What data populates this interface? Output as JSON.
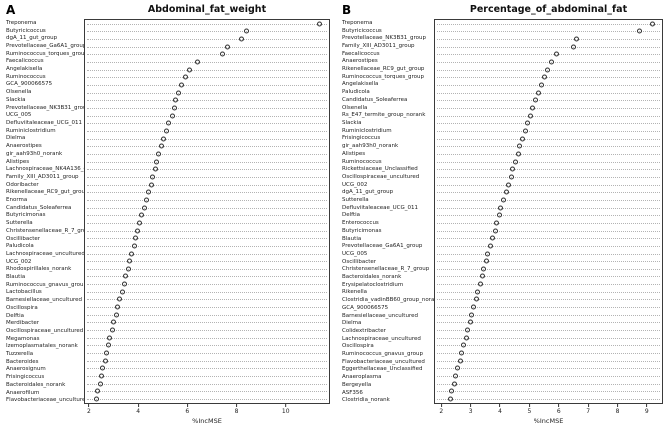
{
  "figure": {
    "panels": [
      {
        "letter": "A"
      },
      {
        "letter": "B"
      }
    ]
  },
  "chart_data": [
    {
      "type": "scatter",
      "subtype": "dotchart",
      "title": "Abdominal_fat_weight",
      "xlabel": "%IncMSE",
      "xlim": [
        1.8,
        11.8
      ],
      "xticks": [
        2,
        4,
        6,
        8,
        10
      ],
      "grid": "horizontal dotted per category",
      "legend": "none",
      "categories": [
        "Treponema",
        "Butyricicoccus",
        "dgA_11_gut_group",
        "Prevotellaceae_Ga6A1_group",
        "Ruminococcus_torques_group",
        "Faecalicoccus",
        "Angelakisella",
        "Ruminococcus",
        "GCA_900066575",
        "Olsenella",
        "Slackia",
        "Prevotellaceae_NK3B31_group",
        "UCG_005",
        "Defluviitaleaceae_UCG_011",
        "Ruminiclostridium",
        "Dielma",
        "Anaerostipes",
        "gir_aah93h0_norank",
        "Alistipes",
        "Lachnospiraceae_NK4A136_group",
        "Family_XIII_AD3011_group",
        "Odoribacter",
        "Rikenellaceae_RC9_gut_group",
        "Enorma",
        "Candidatus_Soleaferrea",
        "Butyricimonas",
        "Sutterella",
        "Christensenellaceae_R_7_group",
        "Oscillibacter",
        "Paludicola",
        "Lachnospiraceae_uncultured",
        "UCG_002",
        "Rhodospirillales_norank",
        "Blautia",
        "Ruminococcus_gnavus_group",
        "Lactobacillus",
        "Barnesiellaceae_uncultured",
        "Oscillospira",
        "Delftia",
        "Merdibacter",
        "Oscillospiraceae_uncultured",
        "Megamonas",
        "Izemoplasmatales_norank",
        "Tuzzerella",
        "Bacteroides",
        "Anaerosignum",
        "Frisingicoccus",
        "Bacteroidales_norank",
        "Anaerofilum",
        "Flavobacteriaceae_uncultured"
      ],
      "values": [
        11.4,
        8.4,
        8.2,
        7.6,
        7.4,
        6.4,
        6.05,
        5.9,
        5.75,
        5.6,
        5.5,
        5.45,
        5.35,
        5.2,
        5.1,
        5.0,
        4.9,
        4.8,
        4.7,
        4.65,
        4.55,
        4.5,
        4.4,
        4.3,
        4.2,
        4.1,
        4.0,
        3.95,
        3.85,
        3.8,
        3.7,
        3.6,
        3.55,
        3.45,
        3.4,
        3.3,
        3.2,
        3.1,
        3.05,
        2.95,
        2.9,
        2.8,
        2.75,
        2.65,
        2.6,
        2.5,
        2.45,
        2.4,
        2.3,
        2.25
      ]
    },
    {
      "type": "scatter",
      "subtype": "dotchart",
      "title": "Percentage_of_abdominal_fat",
      "xlabel": "%IncMSE",
      "xlim": [
        1.75,
        9.55
      ],
      "xticks": [
        2,
        3,
        4,
        5,
        6,
        7,
        8,
        9
      ],
      "grid": "horizontal dotted per category",
      "legend": "none",
      "categories": [
        "Treponema",
        "Butyricicoccus",
        "Prevotellaceae_NK3B31_group",
        "Family_XIII_AD3011_group",
        "Faecalicoccus",
        "Anaerostipes",
        "Rikenellaceae_RC9_gut_group",
        "Ruminococcus_torques_group",
        "Angelakisella",
        "Paludicola",
        "Candidatus_Soleaferrea",
        "Olsenella",
        "Rs_E47_termite_group_norank",
        "Slackia",
        "Ruminiclostridium",
        "Frisingicoccus",
        "gir_aah93h0_norank",
        "Alistipes",
        "Ruminococcus",
        "Rickettsiaceae_Unclassified",
        "Oscillospiraceae_uncultured",
        "UCG_002",
        "dgA_11_gut_group",
        "Sutterella",
        "Defluviitaleaceae_UCG_011",
        "Delftia",
        "Enterococcus",
        "Butyricimonas",
        "Blautia",
        "Prevotellaceae_Ga6A1_group",
        "UCG_005",
        "Oscillibacter",
        "Christensenellaceae_R_7_group",
        "Bacteroidales_norank",
        "Erysipelatoclostridium",
        "Rikenella",
        "Clostridia_vadinBB60_group_norank",
        "GCA_900066575",
        "Barnesiellaceae_uncultured",
        "Dielma",
        "Colidextribacter",
        "Lachnospiraceae_uncultured",
        "Oscillospira",
        "Ruminococcus_gnavus_group",
        "Flavobacteriaceae_uncultured",
        "Eggerthellaceae_Unclassified",
        "Anaeroplasma",
        "Bergeyella",
        "ASF356",
        "Clostridia_norank"
      ],
      "values": [
        9.2,
        8.75,
        6.6,
        6.5,
        5.9,
        5.75,
        5.6,
        5.5,
        5.4,
        5.3,
        5.2,
        5.1,
        5.0,
        4.9,
        4.85,
        4.75,
        4.65,
        4.6,
        4.5,
        4.4,
        4.35,
        4.25,
        4.2,
        4.1,
        4.0,
        3.95,
        3.85,
        3.8,
        3.7,
        3.65,
        3.55,
        3.5,
        3.4,
        3.35,
        3.3,
        3.2,
        3.15,
        3.05,
        3.0,
        2.95,
        2.85,
        2.8,
        2.7,
        2.65,
        2.6,
        2.5,
        2.45,
        2.4,
        2.3,
        2.25
      ]
    }
  ]
}
